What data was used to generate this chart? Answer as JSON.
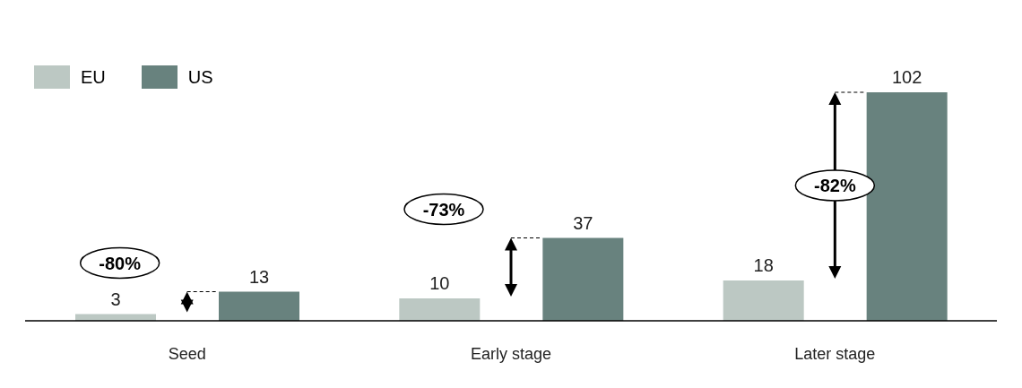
{
  "chart_data": {
    "type": "bar",
    "categories": [
      "Seed",
      "Early stage",
      "Later stage"
    ],
    "series": [
      {
        "name": "EU",
        "color": "#bcc8c3",
        "values": [
          3,
          10,
          18
        ]
      },
      {
        "name": "US",
        "color": "#68827e",
        "values": [
          13,
          37,
          102
        ]
      }
    ],
    "data_labels": true,
    "legend": "top left",
    "annotations": [
      "-80%",
      "-73%",
      "-82%"
    ]
  }
}
